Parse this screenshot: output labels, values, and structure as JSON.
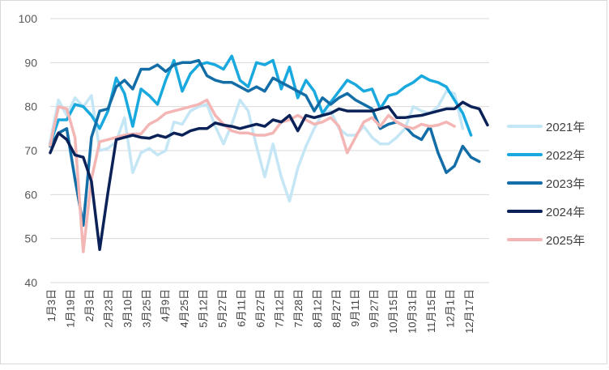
{
  "chart_data": {
    "type": "line",
    "title": "",
    "xlabel": "",
    "ylabel": "",
    "ylim": [
      40,
      100
    ],
    "yticks": [
      40,
      50,
      60,
      70,
      80,
      90,
      100
    ],
    "grid": "horizontal",
    "legend_position": "right",
    "x_tick_labels": [
      "1月3日",
      "1月19日",
      "2月3日",
      "2月23日",
      "3月10日",
      "3月25日",
      "4月9日",
      "4月25日",
      "5月12日",
      "5月27日",
      "6月11日",
      "6月27日",
      "7月12日",
      "7月28日",
      "8月12日",
      "8月27日",
      "9月11日",
      "9月27日",
      "10月15日",
      "10月31日",
      "11月15日",
      "12月1日",
      "12月17日"
    ],
    "series": [
      {
        "name": "2021年",
        "color": "#c5e6f5",
        "values": [
          72,
          81.5,
          78,
          82,
          80,
          82.5,
          70,
          70.5,
          72,
          77.5,
          65,
          69.5,
          70.5,
          69,
          70,
          76.5,
          76,
          79,
          80,
          80.5,
          75.5,
          71.5,
          76,
          81.5,
          79,
          71,
          64,
          71.5,
          64,
          58.5,
          66,
          71,
          75,
          78.5,
          79,
          75,
          73.5,
          73.5,
          75.5,
          73,
          71.5,
          71.5,
          73,
          75,
          80,
          79,
          78.5,
          80,
          83.5,
          83,
          75
        ]
      },
      {
        "name": "2022年",
        "color": "#19a9de",
        "values": [
          71.5,
          77,
          77,
          80.5,
          80,
          78,
          75,
          79,
          86.5,
          83,
          75.5,
          84,
          82.5,
          80.5,
          86,
          90.5,
          83.5,
          87.5,
          89.5,
          90,
          89.5,
          88.5,
          91.5,
          86,
          84.5,
          90,
          89.5,
          90.5,
          84,
          89,
          82,
          86,
          83.5,
          78.5,
          81,
          83.5,
          86,
          85,
          83.5,
          84,
          79.5,
          82.5,
          83,
          84.5,
          85.5,
          87,
          86,
          85.5,
          84.5,
          81.5,
          78.5,
          73.5
        ]
      },
      {
        "name": "2023年",
        "color": "#136ea8",
        "values": [
          71,
          74,
          75,
          63.5,
          53,
          73,
          79,
          79.5,
          84.5,
          86,
          84,
          88.5,
          88.5,
          89.5,
          88,
          89.5,
          90,
          90,
          90.5,
          87,
          86,
          85.5,
          85.5,
          84.5,
          83.5,
          84.5,
          83.5,
          86.5,
          85.5,
          84.5,
          83.5,
          82.5,
          79,
          82,
          80.5,
          82,
          83,
          81.5,
          80.5,
          79.5,
          75,
          76,
          76.5,
          75.5,
          73.5,
          72.5,
          75.5,
          69.5,
          65,
          66.5,
          71,
          68.5,
          67.5
        ]
      },
      {
        "name": "2024年",
        "color": "#0b2258",
        "values": [
          69.5,
          74,
          72.5,
          69,
          68.5,
          63,
          47.5,
          60.5,
          72.5,
          73,
          73.5,
          73,
          72.8,
          73.5,
          73,
          74,
          73.5,
          74.5,
          75,
          75,
          76.3,
          75.8,
          75.5,
          75,
          75.5,
          76,
          75.5,
          77,
          76.5,
          78,
          74.5,
          78,
          77.5,
          78,
          78.5,
          79.5,
          79,
          79,
          79,
          79,
          79.5,
          80,
          77.5,
          77.5,
          77.8,
          78,
          78.5,
          79,
          79.5,
          79.5,
          81,
          80,
          79.5,
          75.8
        ]
      },
      {
        "name": "2025年",
        "color": "#f4b6b4",
        "values": [
          71.2,
          80,
          79.5,
          73,
          47,
          63.5,
          72,
          72.5,
          73,
          73.5,
          73.8,
          73.8,
          76,
          77,
          78.5,
          79,
          79.5,
          80,
          80.5,
          81.5,
          78,
          76,
          74.5,
          74,
          74,
          73.5,
          73.5,
          74,
          76.5,
          77,
          78,
          77,
          76,
          76.5,
          77.5,
          75.5,
          69.5,
          73,
          76.5,
          77.5,
          75.5,
          78,
          76.5,
          75.5,
          75,
          76,
          75.5,
          75.8,
          76.5,
          75.5
        ]
      }
    ]
  }
}
